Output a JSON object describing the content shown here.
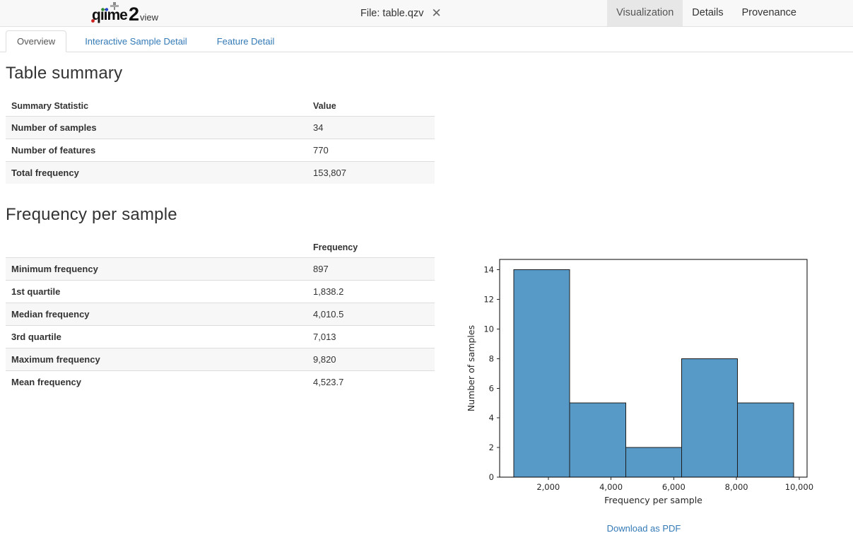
{
  "header": {
    "logo": {
      "word_main": "qiime",
      "word_num": "2",
      "word_sub": "view"
    },
    "file_label": "File: table.qzv",
    "close_icon": "✕",
    "nav": [
      {
        "label": "Visualization",
        "active": true
      },
      {
        "label": "Details",
        "active": false
      },
      {
        "label": "Provenance",
        "active": false
      }
    ]
  },
  "tabs": [
    {
      "label": "Overview",
      "active": true
    },
    {
      "label": "Interactive Sample Detail",
      "active": false
    },
    {
      "label": "Feature Detail",
      "active": false
    }
  ],
  "table_summary": {
    "heading": "Table summary",
    "columns": [
      "Summary Statistic",
      "Value"
    ],
    "rows": [
      [
        "Number of samples",
        "34"
      ],
      [
        "Number of features",
        "770"
      ],
      [
        "Total frequency",
        "153,807"
      ]
    ]
  },
  "frequency_section": {
    "heading": "Frequency per sample",
    "columns": [
      "",
      "Frequency"
    ],
    "rows": [
      [
        "Minimum frequency",
        "897"
      ],
      [
        "1st quartile",
        "1,838.2"
      ],
      [
        "Median frequency",
        "4,010.5"
      ],
      [
        "3rd quartile",
        "7,013"
      ],
      [
        "Maximum frequency",
        "9,820"
      ],
      [
        "Mean frequency",
        "4,523.7"
      ]
    ],
    "download_label": "Download as PDF"
  },
  "chart_data": {
    "type": "bar",
    "subtype": "histogram",
    "title": "",
    "xlabel": "Frequency per sample",
    "ylabel": "Number of samples",
    "bin_edges": [
      897,
      2681.6,
      4466.2,
      6250.8,
      8035.4,
      9820
    ],
    "counts": [
      14,
      5,
      2,
      8,
      5
    ],
    "xlim": [
      450,
      10250
    ],
    "ylim": [
      0,
      14.7
    ],
    "xticks": [
      2000,
      4000,
      6000,
      8000,
      10000
    ],
    "xtick_labels": [
      "2,000",
      "4,000",
      "6,000",
      "8,000",
      "10,000"
    ],
    "yticks": [
      0,
      2,
      4,
      6,
      8,
      10,
      12,
      14
    ],
    "grid": false,
    "legend": null,
    "bar_color": "#5799c7",
    "bar_edge_color": "#1c1c1c",
    "axis_color": "#262626"
  },
  "colors": {
    "link_blue": "#337ab7",
    "header_bg": "#f8f8f8",
    "active_nav_bg": "#e7e7e7",
    "stripe_bg": "#f7f7f7"
  }
}
